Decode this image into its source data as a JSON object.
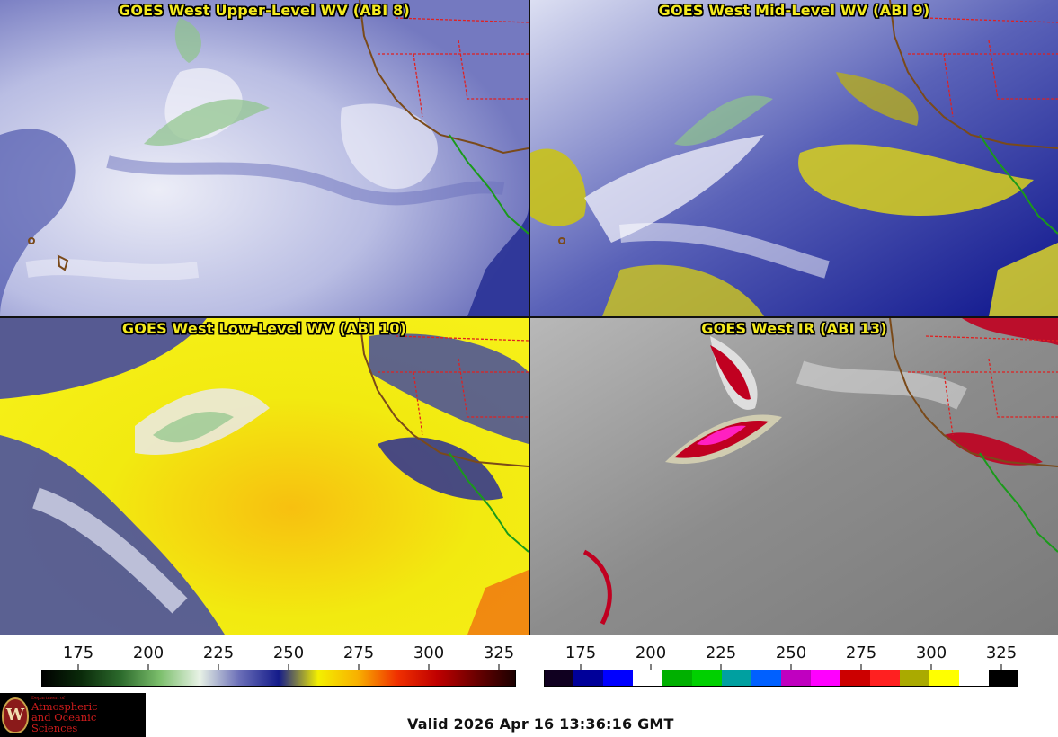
{
  "panels": [
    {
      "title": "GOES West Upper-Level WV (ABI 8)"
    },
    {
      "title": "GOES West Mid-Level WV (ABI 9)"
    },
    {
      "title": "GOES West Low-Level WV (ABI 10)"
    },
    {
      "title": "GOES West IR (ABI 13)"
    }
  ],
  "colorbars": [
    {
      "ticks": [
        "175",
        "200",
        "225",
        "250",
        "275",
        "300",
        "325"
      ],
      "stops": [
        "#000000",
        "#0a2a0a",
        "#2c6a2c",
        "#7cbf6c",
        "#e8f2e6",
        "#6b6fb8",
        "#141b8a",
        "#f4f000",
        "#f8b000",
        "#f03000",
        "#c00000",
        "#6a0000",
        "#1a0000"
      ]
    },
    {
      "ticks": [
        "175",
        "200",
        "225",
        "250",
        "275",
        "300",
        "325"
      ],
      "segments": [
        "#100020",
        "#000099",
        "#0000ff",
        "#ffffff",
        "#00b000",
        "#00d000",
        "#00a0a0",
        "#0060ff",
        "#c000c0",
        "#ff00ff",
        "#cc0000",
        "#ff2020",
        "#aaaa00",
        "#ffff00",
        "#ffffff",
        "#000000"
      ]
    }
  ],
  "logo": {
    "small": "Department of",
    "line1": "Atmospheric",
    "line2": "and Oceanic Sciences"
  },
  "valid_text": "Valid 2026 Apr 16 13:36:16 GMT"
}
